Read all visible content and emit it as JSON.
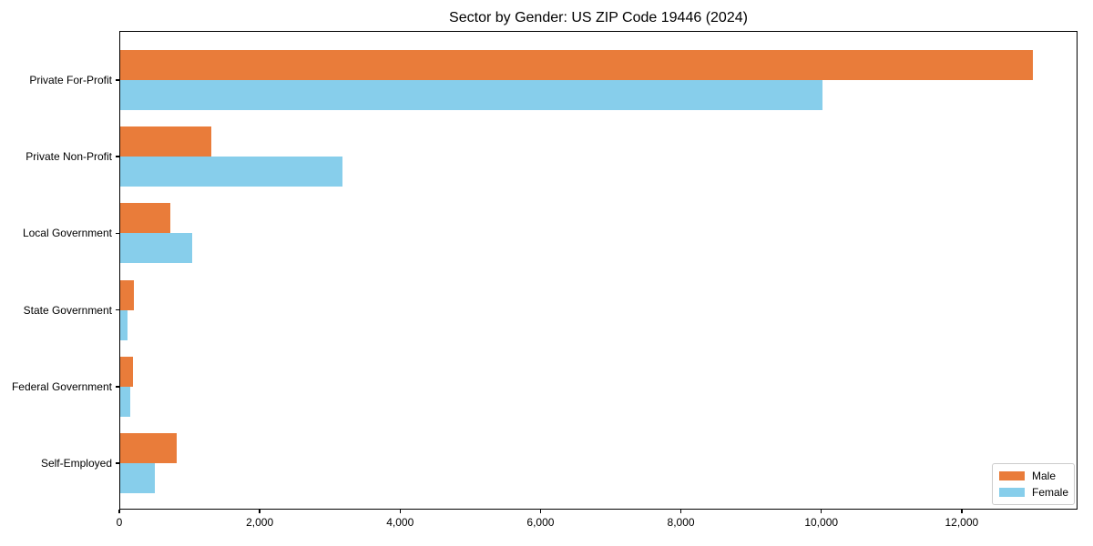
{
  "chart_data": {
    "type": "bar",
    "orientation": "horizontal",
    "title": "Sector by Gender: US ZIP Code 19446 (2024)",
    "categories": [
      "Private For-Profit",
      "Private Non-Profit",
      "Local Government",
      "State Government",
      "Federal Government",
      "Self-Employed"
    ],
    "series": [
      {
        "name": "Male",
        "color": "#e97c3a",
        "values": [
          13000,
          1300,
          720,
          200,
          180,
          810
        ]
      },
      {
        "name": "Female",
        "color": "#87ceeb",
        "values": [
          10000,
          3170,
          1030,
          100,
          140,
          490
        ]
      }
    ],
    "xlabel": "",
    "ylabel": "",
    "xlim": [
      0,
      13650
    ],
    "xticks": [
      {
        "value": 0,
        "label": "0"
      },
      {
        "value": 2000,
        "label": "2,000"
      },
      {
        "value": 4000,
        "label": "4,000"
      },
      {
        "value": 6000,
        "label": "6,000"
      },
      {
        "value": 8000,
        "label": "8,000"
      },
      {
        "value": 10000,
        "label": "10,000"
      },
      {
        "value": 12000,
        "label": "12,000"
      }
    ],
    "grid": false,
    "legend_position": "lower-right",
    "axis_color": "#000000",
    "background_color": "#ffffff"
  }
}
